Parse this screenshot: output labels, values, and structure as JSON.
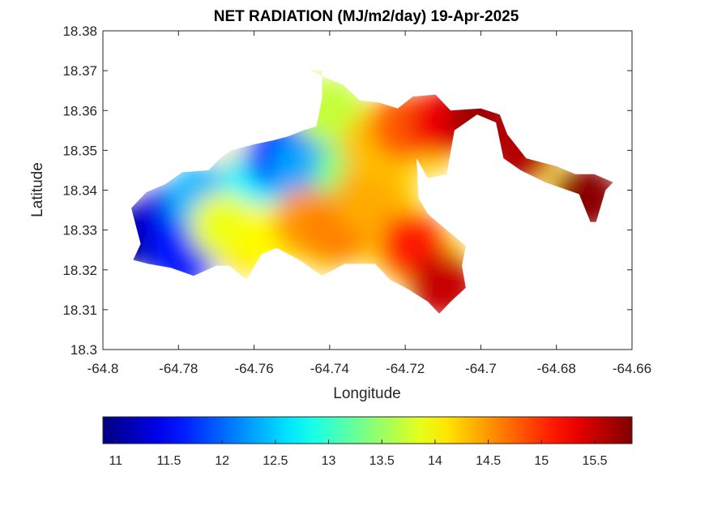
{
  "chart_data": {
    "type": "heatmap",
    "title": "NET RADIATION (MJ/m2/day) 19-Apr-2025",
    "xlabel": "Longitude",
    "ylabel": "Latitude",
    "xlim": [
      -64.8,
      -64.66
    ],
    "ylim": [
      18.3,
      18.38
    ],
    "x_ticks": [
      -64.8,
      -64.78,
      -64.76,
      -64.74,
      -64.72,
      -64.7,
      -64.68,
      -64.66
    ],
    "x_tick_labels": [
      "-64.8",
      "-64.78",
      "-64.76",
      "-64.74",
      "-64.72",
      "-64.7",
      "-64.68",
      "-64.66"
    ],
    "y_ticks": [
      18.3,
      18.31,
      18.32,
      18.33,
      18.34,
      18.35,
      18.36,
      18.37,
      18.38
    ],
    "y_tick_labels": [
      "18.3",
      "18.31",
      "18.32",
      "18.33",
      "18.34",
      "18.35",
      "18.36",
      "18.37",
      "18.38"
    ],
    "colorbar": {
      "colormap": "jet",
      "orientation": "horizontal",
      "placement": "below",
      "range": [
        10.88,
        15.85
      ],
      "ticks": [
        11,
        11.5,
        12,
        12.5,
        13,
        13.5,
        14,
        14.5,
        15,
        15.5
      ],
      "tick_labels": [
        "11",
        "11.5",
        "12",
        "12.5",
        "13",
        "13.5",
        "14",
        "14.5",
        "15",
        "15.5"
      ]
    },
    "grid": false,
    "field": {
      "land_outline": [
        [
          -64.7925,
          18.3355
        ],
        [
          -64.7885,
          18.3395
        ],
        [
          -64.7835,
          18.3415
        ],
        [
          -64.779,
          18.3445
        ],
        [
          -64.772,
          18.345
        ],
        [
          -64.769,
          18.348
        ],
        [
          -64.766,
          18.35
        ],
        [
          -64.76,
          18.3515
        ],
        [
          -64.755,
          18.3525
        ],
        [
          -64.751,
          18.3535
        ],
        [
          -64.747,
          18.355
        ],
        [
          -64.7435,
          18.356
        ],
        [
          -64.742,
          18.363
        ],
        [
          -64.742,
          18.37
        ],
        [
          -64.746,
          18.3705
        ],
        [
          -64.7405,
          18.368
        ],
        [
          -64.7365,
          18.3665
        ],
        [
          -64.732,
          18.3625
        ],
        [
          -64.727,
          18.362
        ],
        [
          -64.722,
          18.3605
        ],
        [
          -64.718,
          18.3635
        ],
        [
          -64.712,
          18.364
        ],
        [
          -64.708,
          18.36
        ],
        [
          -64.7,
          18.3605
        ],
        [
          -64.695,
          18.359
        ],
        [
          -64.693,
          18.354
        ],
        [
          -64.688,
          18.348
        ],
        [
          -64.68,
          18.346
        ],
        [
          -64.675,
          18.344
        ],
        [
          -64.67,
          18.344
        ],
        [
          -64.665,
          18.342
        ],
        [
          -64.667,
          18.34
        ],
        [
          -64.6695,
          18.332
        ],
        [
          -64.671,
          18.332
        ],
        [
          -64.674,
          18.339
        ],
        [
          -64.677,
          18.34
        ],
        [
          -64.683,
          18.342
        ],
        [
          -64.6895,
          18.345
        ],
        [
          -64.694,
          18.348
        ],
        [
          -64.696,
          18.357
        ],
        [
          -64.701,
          18.359
        ],
        [
          -64.707,
          18.355
        ],
        [
          -64.709,
          18.344
        ],
        [
          -64.714,
          18.343
        ],
        [
          -64.717,
          18.348
        ],
        [
          -64.7165,
          18.338
        ],
        [
          -64.714,
          18.334
        ],
        [
          -64.709,
          18.33
        ],
        [
          -64.704,
          18.326
        ],
        [
          -64.705,
          18.321
        ],
        [
          -64.704,
          18.3155
        ],
        [
          -64.708,
          18.312
        ],
        [
          -64.711,
          18.309
        ],
        [
          -64.714,
          18.312
        ],
        [
          -64.719,
          18.315
        ],
        [
          -64.724,
          18.3175
        ],
        [
          -64.728,
          18.3215
        ],
        [
          -64.736,
          18.3215
        ],
        [
          -64.742,
          18.3185
        ],
        [
          -64.748,
          18.3225
        ],
        [
          -64.754,
          18.3255
        ],
        [
          -64.758,
          18.324
        ],
        [
          -64.762,
          18.3175
        ],
        [
          -64.7665,
          18.321
        ],
        [
          -64.77,
          18.321
        ],
        [
          -64.776,
          18.3185
        ],
        [
          -64.782,
          18.3205
        ],
        [
          -64.788,
          18.3215
        ],
        [
          -64.792,
          18.3225
        ],
        [
          -64.79,
          18.3265
        ],
        [
          -64.7925,
          18.3355
        ]
      ],
      "value_centers": [
        {
          "lon": -64.7895,
          "lat": 18.329,
          "value": 11.0
        },
        {
          "lon": -64.782,
          "lat": 18.333,
          "value": 11.4
        },
        {
          "lon": -64.779,
          "lat": 18.324,
          "value": 11.6
        },
        {
          "lon": -64.774,
          "lat": 18.338,
          "value": 12.4
        },
        {
          "lon": -64.76,
          "lat": 18.341,
          "value": 12.7
        },
        {
          "lon": -64.753,
          "lat": 18.348,
          "value": 11.7
        },
        {
          "lon": -64.741,
          "lat": 18.3505,
          "value": 11.2
        },
        {
          "lon": -64.747,
          "lat": 18.345,
          "value": 12.3
        },
        {
          "lon": -64.74,
          "lat": 18.36,
          "value": 13.7
        },
        {
          "lon": -64.735,
          "lat": 18.344,
          "value": 13.4
        },
        {
          "lon": -64.768,
          "lat": 18.331,
          "value": 13.9
        },
        {
          "lon": -64.756,
          "lat": 18.328,
          "value": 14.0
        },
        {
          "lon": -64.746,
          "lat": 18.332,
          "value": 14.5
        },
        {
          "lon": -64.738,
          "lat": 18.33,
          "value": 14.6
        },
        {
          "lon": -64.73,
          "lat": 18.338,
          "value": 14.4
        },
        {
          "lon": -64.728,
          "lat": 18.351,
          "value": 14.3
        },
        {
          "lon": -64.72,
          "lat": 18.356,
          "value": 14.8
        },
        {
          "lon": -64.71,
          "lat": 18.357,
          "value": 15.3
        },
        {
          "lon": -64.718,
          "lat": 18.326,
          "value": 15.1
        },
        {
          "lon": -64.71,
          "lat": 18.316,
          "value": 15.5
        },
        {
          "lon": -64.7,
          "lat": 18.358,
          "value": 15.7
        },
        {
          "lon": -64.69,
          "lat": 18.35,
          "value": 15.6
        },
        {
          "lon": -64.672,
          "lat": 18.338,
          "value": 15.8
        }
      ]
    }
  }
}
